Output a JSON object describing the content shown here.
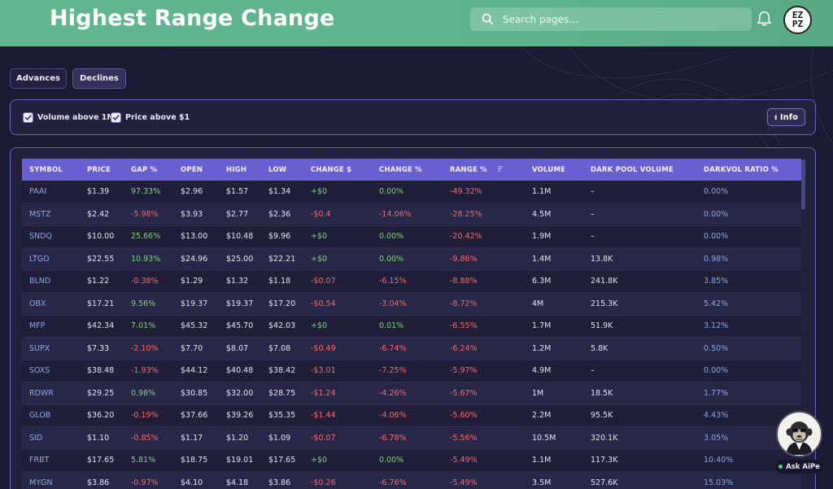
{
  "header": {
    "title": "Highest Range Change",
    "search_placeholder": "Search pages...",
    "avatar_text_top": "EZ",
    "avatar_text_bottom": "PZ"
  },
  "tabs": [
    {
      "label": "Advances",
      "active": false
    },
    {
      "label": "Declines",
      "active": true
    }
  ],
  "filters": [
    {
      "label": "Volume above 1M",
      "checked": true
    },
    {
      "label": "Price above $1",
      "checked": true
    }
  ],
  "info_button": "ı Info",
  "table": {
    "columns": [
      "SYMBOL",
      "PRICE",
      "GAP %",
      "OPEN",
      "HIGH",
      "LOW",
      "CHANGE $",
      "CHANGE %",
      "RANGE %",
      "VOLUME",
      "DARK POOL VOLUME",
      "DARKVOL RATIO %"
    ],
    "sorted_column": "RANGE %",
    "rows": [
      [
        "PAAI",
        "$1.39",
        "97.33%",
        "$2.96",
        "$1.57",
        "$1.34",
        "+$0",
        "0.00%",
        "-49.32%",
        "1.1M",
        "–",
        "0.00%"
      ],
      [
        "MSTZ",
        "$2.42",
        "-5.98%",
        "$3.93",
        "$2.77",
        "$2.36",
        "-$0.4",
        "-14.06%",
        "-28.25%",
        "4.5M",
        "–",
        "0.00%"
      ],
      [
        "SNDQ",
        "$10.00",
        "25.66%",
        "$13.00",
        "$10.48",
        "$9.96",
        "+$0",
        "0.00%",
        "-20.42%",
        "1.9M",
        "–",
        "0.00%"
      ],
      [
        "LTGO",
        "$22.55",
        "10.93%",
        "$24.96",
        "$25.00",
        "$22.21",
        "+$0",
        "0.00%",
        "-9.86%",
        "1.4M",
        "13.8K",
        "0.98%"
      ],
      [
        "BLND",
        "$1.22",
        "-0.38%",
        "$1.29",
        "$1.32",
        "$1.18",
        "-$0.07",
        "-6.15%",
        "-8.88%",
        "6.3M",
        "241.8K",
        "3.85%"
      ],
      [
        "OBX",
        "$17.21",
        "9.56%",
        "$19.37",
        "$19.37",
        "$17.20",
        "-$0.54",
        "-3.04%",
        "-8.72%",
        "4M",
        "215.3K",
        "5.42%"
      ],
      [
        "MFP",
        "$42.34",
        "7.01%",
        "$45.32",
        "$45.70",
        "$42.03",
        "+$0",
        "0.01%",
        "-6.55%",
        "1.7M",
        "51.9K",
        "3.12%"
      ],
      [
        "SUPX",
        "$7.33",
        "-2.10%",
        "$7.70",
        "$8.07",
        "$7.08",
        "-$0.49",
        "-6.74%",
        "-6.24%",
        "1.2M",
        "5.8K",
        "0.50%"
      ],
      [
        "SOXS",
        "$38.48",
        "-1.93%",
        "$44.12",
        "$40.48",
        "$38.42",
        "-$3.01",
        "-7.25%",
        "-5.97%",
        "4.9M",
        "–",
        "0.00%"
      ],
      [
        "RDWR",
        "$29.25",
        "0.98%",
        "$30.85",
        "$32.00",
        "$28.75",
        "-$1.24",
        "-4.26%",
        "-5.67%",
        "1M",
        "18.5K",
        "1.77%"
      ],
      [
        "GLOB",
        "$36.20",
        "-0.19%",
        "$37.66",
        "$39.26",
        "$35.35",
        "-$1.44",
        "-4.06%",
        "-5.60%",
        "2.2M",
        "95.5K",
        "4.43%"
      ],
      [
        "SID",
        "$1.10",
        "-0.85%",
        "$1.17",
        "$1.20",
        "$1.09",
        "-$0.07",
        "-6.78%",
        "-5.56%",
        "10.5M",
        "320.1K",
        "3.05%"
      ],
      [
        "FRBT",
        "$17.65",
        "5.81%",
        "$18.75",
        "$19.01",
        "$17.65",
        "+$0",
        "0.00%",
        "-5.49%",
        "1.1M",
        "117.3K",
        "10.40%"
      ],
      [
        "MYGN",
        "$3.86",
        "-0.97%",
        "$4.10",
        "$4.18",
        "$3.86",
        "-$0.26",
        "-6.76%",
        "-5.49%",
        "3.5M",
        "527.6K",
        "15.03%"
      ]
    ]
  },
  "assistant": {
    "label": "Ask AiPe"
  },
  "colors": {
    "header": "#5db48c",
    "accent": "#6a5ed3",
    "positive": "#7fd37a",
    "negative": "#ef6b6b",
    "symbol": "#8ea9e8"
  }
}
